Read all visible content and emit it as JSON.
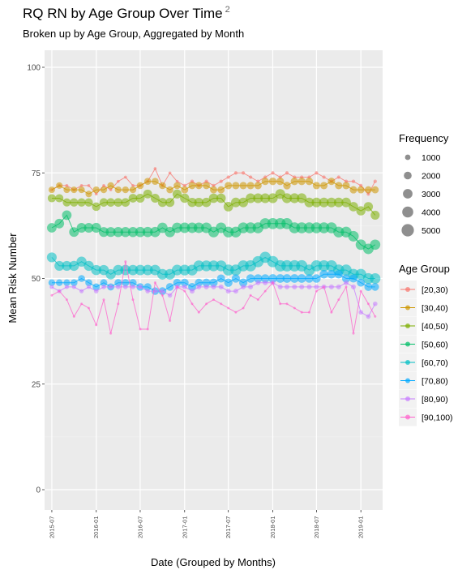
{
  "footnote_marker": "2",
  "chart_data": {
    "type": "scatter",
    "title": "RQ RN by Age Group Over Time",
    "subtitle": "Broken up by Age Group, Aggregated by Month",
    "xlabel": "Date (Grouped by Months)",
    "ylabel": "Mean Risk Number",
    "ylim": [
      0,
      100
    ],
    "y_ticks": [
      0,
      25,
      50,
      75,
      100
    ],
    "x_range": [
      "2015-06-01",
      "2019-04-01"
    ],
    "x_ticks": [
      "2015-07",
      "2016-01",
      "2016-07",
      "2017-01",
      "2017-07",
      "2018-01",
      "2018-07",
      "2019-01"
    ],
    "grid": true,
    "point_size_legend": {
      "title": "Frequency",
      "values": [
        1000,
        2000,
        3000,
        4000,
        5000
      ]
    },
    "color_legend": {
      "title": "Age Group",
      "position": "right"
    },
    "x": [
      "2015-07",
      "2015-08",
      "2015-09",
      "2015-10",
      "2015-11",
      "2015-12",
      "2016-01",
      "2016-02",
      "2016-03",
      "2016-04",
      "2016-05",
      "2016-06",
      "2016-07",
      "2016-08",
      "2016-09",
      "2016-10",
      "2016-11",
      "2016-12",
      "2017-01",
      "2017-02",
      "2017-03",
      "2017-04",
      "2017-05",
      "2017-06",
      "2017-07",
      "2017-08",
      "2017-09",
      "2017-10",
      "2017-11",
      "2017-12",
      "2018-01",
      "2018-02",
      "2018-03",
      "2018-04",
      "2018-05",
      "2018-06",
      "2018-07",
      "2018-08",
      "2018-09",
      "2018-10",
      "2018-11",
      "2018-12",
      "2019-01",
      "2019-02",
      "2019-03"
    ],
    "series": [
      {
        "name": "[20,30)",
        "color": "#F8766D",
        "values": [
          71,
          72,
          72,
          71,
          72,
          72,
          70,
          72,
          71,
          73,
          74,
          72,
          72,
          73,
          76,
          72,
          75,
          73,
          72,
          73,
          72,
          73,
          72,
          73,
          74,
          75,
          75,
          74,
          73,
          74,
          75,
          74,
          75,
          74,
          74,
          74,
          75,
          74,
          73,
          74,
          73,
          73,
          72,
          70,
          73
        ],
        "freq": [
          300,
          300,
          300,
          300,
          300,
          300,
          300,
          300,
          300,
          300,
          300,
          300,
          300,
          300,
          300,
          300,
          300,
          300,
          400,
          400,
          400,
          400,
          400,
          400,
          400,
          400,
          400,
          400,
          400,
          400,
          400,
          400,
          400,
          400,
          400,
          400,
          400,
          400,
          400,
          400,
          400,
          400,
          400,
          400,
          400
        ]
      },
      {
        "name": "[30,40)",
        "color": "#CD9600",
        "values": [
          71,
          72,
          71,
          71,
          71,
          70,
          71,
          71,
          72,
          71,
          71,
          71,
          72,
          73,
          73,
          72,
          71,
          72,
          71,
          72,
          72,
          72,
          71,
          71,
          72,
          72,
          72,
          72,
          72,
          73,
          73,
          73,
          72,
          73,
          73,
          73,
          72,
          72,
          73,
          72,
          72,
          71,
          71,
          71,
          71
        ],
        "freq": [
          1400,
          1400,
          1400,
          1400,
          1400,
          1400,
          1500,
          1500,
          1500,
          1500,
          1500,
          1500,
          1600,
          1600,
          1600,
          1600,
          1600,
          1600,
          1700,
          1700,
          1700,
          1700,
          1700,
          1700,
          1800,
          1800,
          1800,
          1800,
          1800,
          1800,
          1900,
          1900,
          1900,
          1900,
          1900,
          1900,
          1800,
          1800,
          1800,
          1800,
          1800,
          1800,
          1700,
          1700,
          1700
        ]
      },
      {
        "name": "[40,50)",
        "color": "#7CAE00",
        "values": [
          69,
          69,
          68,
          68,
          68,
          68,
          67,
          68,
          68,
          68,
          68,
          69,
          69,
          70,
          69,
          68,
          68,
          70,
          69,
          68,
          68,
          68,
          69,
          69,
          67,
          68,
          68,
          69,
          69,
          69,
          69,
          70,
          69,
          69,
          69,
          68,
          68,
          68,
          68,
          68,
          68,
          67,
          66,
          67,
          65
        ],
        "freq": [
          2200,
          2200,
          2200,
          2300,
          2300,
          2300,
          2400,
          2400,
          2400,
          2500,
          2500,
          2500,
          2600,
          2600,
          2600,
          2700,
          2700,
          2700,
          2800,
          2800,
          2800,
          2900,
          2900,
          2900,
          3000,
          3000,
          3000,
          3100,
          3100,
          3100,
          3200,
          3200,
          3200,
          3200,
          3200,
          3100,
          3100,
          3100,
          3100,
          3000,
          3000,
          2900,
          2800,
          2800,
          2700
        ]
      },
      {
        "name": "[50,60)",
        "color": "#00BE67",
        "values": [
          62,
          63,
          65,
          61,
          62,
          62,
          62,
          61,
          61,
          61,
          61,
          61,
          61,
          61,
          61,
          62,
          61,
          62,
          62,
          62,
          62,
          62,
          61,
          62,
          61,
          61,
          62,
          62,
          62,
          63,
          63,
          63,
          63,
          62,
          62,
          62,
          62,
          62,
          62,
          61,
          61,
          60,
          58,
          57,
          58
        ],
        "freq": [
          3000,
          3000,
          3000,
          3100,
          3100,
          3100,
          3200,
          3200,
          3200,
          3300,
          3300,
          3300,
          3400,
          3400,
          3400,
          3500,
          3500,
          3500,
          3600,
          3600,
          3600,
          3700,
          3700,
          3700,
          3800,
          3800,
          3800,
          3900,
          3900,
          3900,
          4000,
          4000,
          4000,
          4000,
          4000,
          3900,
          3900,
          3900,
          3900,
          3800,
          3800,
          3700,
          3600,
          3600,
          3500
        ]
      },
      {
        "name": "[60,70)",
        "color": "#00BFC4",
        "values": [
          55,
          53,
          53,
          53,
          54,
          53,
          52,
          52,
          51,
          52,
          52,
          52,
          52,
          52,
          52,
          51,
          51,
          52,
          52,
          52,
          53,
          53,
          53,
          53,
          52,
          52,
          53,
          53,
          54,
          55,
          54,
          53,
          53,
          53,
          53,
          52,
          53,
          53,
          53,
          52,
          52,
          51,
          51,
          50,
          50
        ],
        "freq": [
          3200,
          3200,
          3200,
          3300,
          3300,
          3300,
          3400,
          3400,
          3400,
          3500,
          3500,
          3500,
          3600,
          3600,
          3600,
          3700,
          3700,
          3700,
          3800,
          3800,
          3800,
          3900,
          3900,
          3900,
          4000,
          4000,
          4000,
          4100,
          4100,
          4100,
          4200,
          4200,
          4200,
          4200,
          4200,
          4100,
          4100,
          4100,
          4100,
          4000,
          4000,
          3900,
          3800,
          3800,
          3700
        ]
      },
      {
        "name": "[70,80)",
        "color": "#00A9FF",
        "values": [
          49,
          49,
          49,
          49,
          50,
          49,
          48,
          49,
          48,
          49,
          49,
          49,
          48,
          48,
          47,
          47,
          48,
          49,
          49,
          48,
          49,
          49,
          49,
          50,
          49,
          50,
          49,
          50,
          50,
          50,
          50,
          50,
          50,
          50,
          50,
          50,
          50,
          51,
          51,
          51,
          50,
          50,
          49,
          48,
          48
        ],
        "freq": [
          1500,
          1500,
          1500,
          1600,
          1600,
          1600,
          1700,
          1700,
          1700,
          1800,
          1800,
          1800,
          1900,
          1900,
          1900,
          2000,
          2000,
          2000,
          2100,
          2100,
          2100,
          2200,
          2200,
          2200,
          2300,
          2300,
          2300,
          2400,
          2400,
          2400,
          2500,
          2500,
          2500,
          2500,
          2500,
          2400,
          2400,
          2400,
          2400,
          2300,
          2300,
          2200,
          2100,
          2100,
          2000
        ]
      },
      {
        "name": "[80,90)",
        "color": "#C77CFF",
        "values": [
          48,
          47,
          48,
          48,
          47,
          48,
          47,
          48,
          48,
          48,
          48,
          48,
          48,
          47,
          47,
          47,
          46,
          48,
          48,
          47,
          48,
          48,
          48,
          48,
          47,
          47,
          48,
          48,
          49,
          49,
          49,
          48,
          48,
          48,
          48,
          48,
          48,
          48,
          48,
          48,
          49,
          48,
          42,
          41,
          44
        ],
        "freq": [
          600,
          600,
          600,
          600,
          600,
          600,
          700,
          700,
          700,
          700,
          700,
          700,
          700,
          700,
          700,
          700,
          700,
          700,
          800,
          800,
          800,
          800,
          800,
          800,
          800,
          800,
          800,
          800,
          800,
          800,
          800,
          800,
          800,
          800,
          800,
          800,
          800,
          800,
          800,
          800,
          800,
          800,
          700,
          700,
          700
        ]
      },
      {
        "name": "[90,100)",
        "color": "#FF61CC",
        "values": [
          46,
          47,
          45,
          41,
          44,
          43,
          39,
          45,
          37,
          44,
          54,
          45,
          38,
          38,
          49,
          46,
          40,
          48,
          47,
          44,
          42,
          44,
          45,
          44,
          43,
          42,
          43,
          46,
          45,
          47,
          49,
          44,
          44,
          43,
          42,
          42,
          47,
          48,
          42,
          45,
          48,
          37,
          47,
          44,
          41
        ],
        "freq": [
          200,
          200,
          200,
          200,
          200,
          200,
          200,
          200,
          200,
          200,
          200,
          200,
          200,
          200,
          200,
          200,
          200,
          200,
          200,
          200,
          200,
          200,
          200,
          200,
          200,
          200,
          200,
          200,
          200,
          200,
          200,
          200,
          200,
          200,
          200,
          200,
          200,
          200,
          200,
          200,
          200,
          200,
          200,
          200,
          200
        ]
      }
    ]
  }
}
